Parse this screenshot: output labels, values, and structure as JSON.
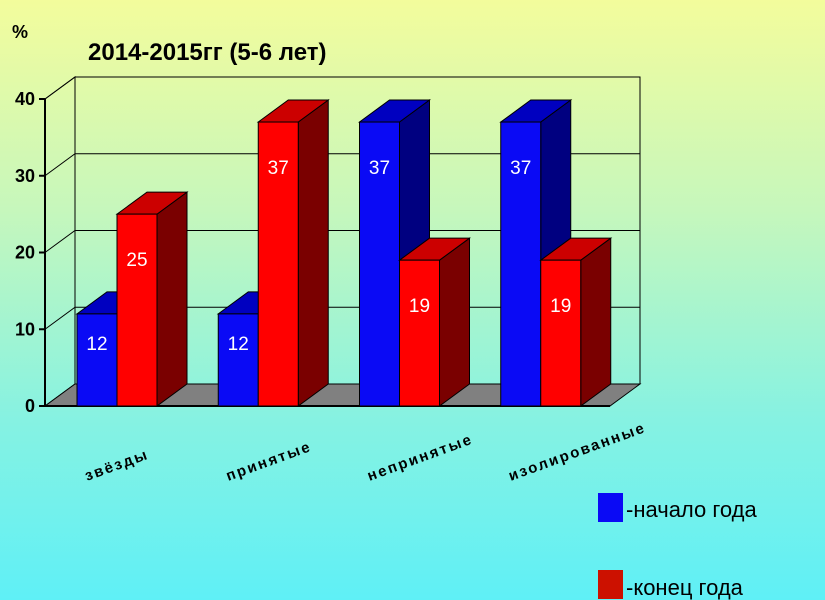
{
  "chart_data": {
    "type": "bar",
    "title": "2014-2015гг (5-6 лет)",
    "ylabel": "%",
    "ylim": [
      0,
      40
    ],
    "yticks": [
      0,
      10,
      20,
      30,
      40
    ],
    "categories": [
      "звёзды",
      "принятые",
      "непринятые",
      "изолированные"
    ],
    "series": [
      {
        "name": "-начало года",
        "values": [
          12,
          12,
          37,
          37
        ]
      },
      {
        "name": "-конец года",
        "values": [
          25,
          37,
          19,
          19
        ]
      }
    ],
    "grid": true,
    "legend_position": "bottom-right"
  },
  "colors": {
    "series": [
      {
        "front": "#0a0af5",
        "side": "#000080",
        "top": "#0000c0",
        "legend": "#0a0af5"
      },
      {
        "front": "#ff0000",
        "side": "#7a0000",
        "top": "#cc0000",
        "legend": "#cc1100"
      }
    ],
    "floor": "#808080"
  }
}
